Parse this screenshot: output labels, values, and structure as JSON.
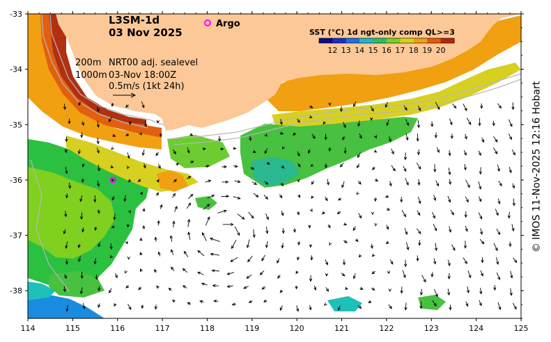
{
  "product": {
    "title": "L3SM-1d",
    "date": "03 Nov 2025"
  },
  "legend": {
    "argo_label": "Argo",
    "colorbar_title": "SST (°C) 1d ngt-only comp QL>=3",
    "ticks": [
      "12",
      "13",
      "14",
      "15",
      "16",
      "17",
      "18",
      "19",
      "20"
    ],
    "colors": [
      "#0b0b8a",
      "#1030c8",
      "#1a70e0",
      "#1fb8c8",
      "#28c060",
      "#7ad020",
      "#d8d020",
      "#f0a010",
      "#e85808",
      "#b02808"
    ]
  },
  "annotations": {
    "isobath_200": "200m",
    "isobath_1000": "1000m",
    "current_source": "NRT00 adj. sealevel",
    "current_time": "03-Nov 18:00Z",
    "arrow_scale": "0.5m/s (1kt 24h)"
  },
  "axes": {
    "x_ticks": [
      "114",
      "115",
      "116",
      "117",
      "118",
      "119",
      "120",
      "121",
      "122",
      "123",
      "124",
      "125"
    ],
    "y_ticks": [
      "-33",
      "-34",
      "-35",
      "-36",
      "-37",
      "-38"
    ]
  },
  "map_data": {
    "lon_range": [
      114,
      125
    ],
    "lat_range": [
      -38.5,
      -33
    ],
    "argo_floats": [
      {
        "lon": 115.9,
        "lat": -36.0
      }
    ],
    "colors": {
      "land": "#fcc898",
      "ocean_nodata": "#ffffff",
      "argo_marker": "#ff00ff",
      "isobath": "#b8b8b8"
    }
  },
  "credit": "© IMOS 11-Nov-2025 12:16 Hobart"
}
